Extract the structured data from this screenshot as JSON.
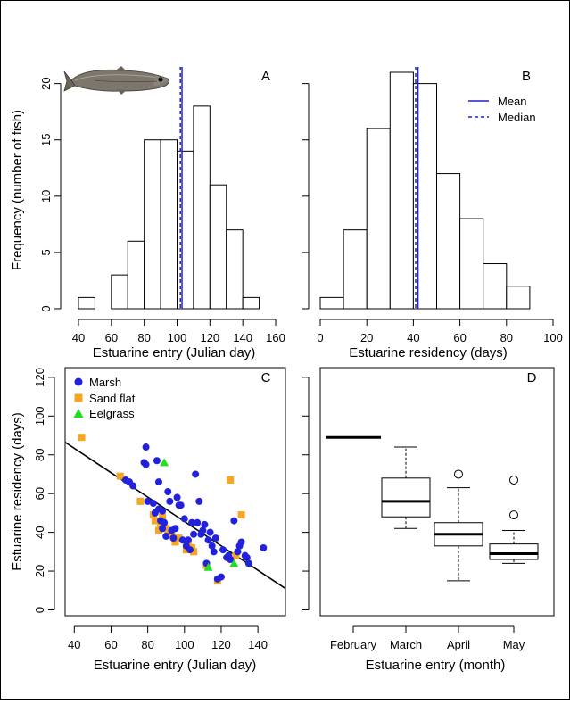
{
  "chart_data": [
    {
      "panel": "A",
      "type": "bar",
      "xlabel": "Estuarine entry (Julian day)",
      "ylabel": "Frequency (number of fish)",
      "xlim": [
        40,
        160
      ],
      "ylim": [
        0,
        21
      ],
      "xticks": [
        40,
        60,
        80,
        100,
        120,
        140,
        160
      ],
      "yticks": [
        0,
        5,
        10,
        15,
        20
      ],
      "bins": [
        [
          40,
          50
        ],
        [
          50,
          60
        ],
        [
          60,
          70
        ],
        [
          70,
          80
        ],
        [
          80,
          90
        ],
        [
          90,
          100
        ],
        [
          100,
          110
        ],
        [
          110,
          120
        ],
        [
          120,
          130
        ],
        [
          130,
          140
        ],
        [
          140,
          150
        ]
      ],
      "values": [
        1,
        0,
        3,
        6,
        15,
        15,
        14,
        18,
        11,
        7,
        1
      ],
      "mean": 103,
      "median": 102
    },
    {
      "panel": "B",
      "type": "bar",
      "xlabel": "Estuarine residency (days)",
      "xlim": [
        0,
        100
      ],
      "ylim": [
        0,
        21
      ],
      "xticks": [
        0,
        20,
        40,
        60,
        80,
        100
      ],
      "yticks": [
        0,
        5,
        10,
        15,
        20
      ],
      "bins": [
        [
          0,
          10
        ],
        [
          10,
          20
        ],
        [
          20,
          30
        ],
        [
          30,
          40
        ],
        [
          40,
          50
        ],
        [
          50,
          60
        ],
        [
          60,
          70
        ],
        [
          70,
          80
        ],
        [
          80,
          90
        ]
      ],
      "values": [
        1,
        7,
        16,
        21,
        20,
        12,
        8,
        4,
        2
      ],
      "mean": 42,
      "median": 41,
      "legend": [
        {
          "label": "Mean",
          "style": "solid"
        },
        {
          "label": "Median",
          "style": "dashed"
        }
      ]
    },
    {
      "panel": "C",
      "type": "scatter",
      "xlabel": "Estuarine entry (Julian day)",
      "ylabel": "Estuarine residency (days)",
      "xlim": [
        35,
        155
      ],
      "ylim": [
        -3,
        125
      ],
      "xticks": [
        40,
        60,
        80,
        100,
        120,
        140
      ],
      "yticks": [
        0,
        20,
        40,
        60,
        80,
        100,
        120
      ],
      "series": [
        {
          "name": "Marsh",
          "points": [
            [
              68,
              67
            ],
            [
              70,
              66
            ],
            [
              72,
              64
            ],
            [
              78,
              76
            ],
            [
              79,
              84
            ],
            [
              79,
              75
            ],
            [
              80,
              56
            ],
            [
              83,
              55
            ],
            [
              84,
              50
            ],
            [
              85,
              77
            ],
            [
              86,
              66
            ],
            [
              86,
              52
            ],
            [
              87,
              46
            ],
            [
              88,
              42
            ],
            [
              88,
              51
            ],
            [
              89,
              45
            ],
            [
              90,
              38
            ],
            [
              91,
              61
            ],
            [
              92,
              56
            ],
            [
              93,
              41
            ],
            [
              94,
              37
            ],
            [
              95,
              42
            ],
            [
              96,
              58
            ],
            [
              97,
              54
            ],
            [
              98,
              54
            ],
            [
              99,
              36
            ],
            [
              100,
              47
            ],
            [
              101,
              33
            ],
            [
              102,
              36
            ],
            [
              103,
              31
            ],
            [
              104,
              45
            ],
            [
              105,
              39
            ],
            [
              106,
              70
            ],
            [
              107,
              45
            ],
            [
              108,
              56
            ],
            [
              109,
              39
            ],
            [
              110,
              41
            ],
            [
              111,
              44
            ],
            [
              112,
              24
            ],
            [
              113,
              36
            ],
            [
              114,
              40
            ],
            [
              115,
              33
            ],
            [
              116,
              30
            ],
            [
              117,
              37
            ],
            [
              118,
              16
            ],
            [
              120,
              17
            ],
            [
              121,
              31
            ],
            [
              123,
              27
            ],
            [
              124,
              28
            ],
            [
              125,
              26
            ],
            [
              127,
              46
            ],
            [
              129,
              30
            ],
            [
              130,
              33
            ],
            [
              131,
              35
            ],
            [
              133,
              28
            ],
            [
              134,
              27
            ],
            [
              135,
              24
            ],
            [
              143,
              32
            ]
          ]
        },
        {
          "name": "Sand flat",
          "points": [
            [
              44,
              89
            ],
            [
              65,
              69
            ],
            [
              76,
              56
            ],
            [
              83,
              49
            ],
            [
              84,
              46
            ],
            [
              86,
              41
            ],
            [
              87,
              44
            ],
            [
              88,
              48
            ],
            [
              90,
              42
            ],
            [
              91,
              40
            ],
            [
              93,
              39
            ],
            [
              95,
              35
            ],
            [
              97,
              37
            ],
            [
              101,
              31
            ],
            [
              102,
              35
            ],
            [
              104,
              32
            ],
            [
              105,
              30
            ],
            [
              112,
              23
            ],
            [
              118,
              15
            ],
            [
              125,
              67
            ],
            [
              128,
              28
            ],
            [
              131,
              49
            ]
          ]
        },
        {
          "name": "Eelgrass",
          "points": [
            [
              89,
              76
            ],
            [
              113,
              22
            ],
            [
              127,
              24
            ]
          ]
        }
      ],
      "regression": {
        "x": [
          35,
          155
        ],
        "y": [
          86.5,
          11
        ]
      }
    },
    {
      "panel": "D",
      "type": "box",
      "xlabel": "Estuarine entry (month)",
      "ylim": [
        -3,
        125
      ],
      "categories": [
        "February",
        "March",
        "April",
        "May"
      ],
      "boxes": [
        {
          "min": 89,
          "q1": 89,
          "median": 89,
          "q3": 89,
          "max": 89,
          "outliers": []
        },
        {
          "min": 42,
          "q1": 48,
          "median": 56,
          "q3": 68,
          "max": 84,
          "outliers": []
        },
        {
          "min": 15,
          "q1": 33,
          "median": 39,
          "q3": 45,
          "max": 63,
          "outliers": [
            70
          ]
        },
        {
          "min": 24,
          "q1": 26,
          "median": 29,
          "q3": 34,
          "max": 41,
          "outliers": [
            49,
            67
          ]
        }
      ]
    }
  ],
  "colors": {
    "marsh": "#2222dd",
    "sand_flat": "#f5a623",
    "eelgrass": "#22dd22",
    "stat_line": "#2222cc"
  },
  "decoration": {
    "fish_icon": "fish-icon"
  }
}
